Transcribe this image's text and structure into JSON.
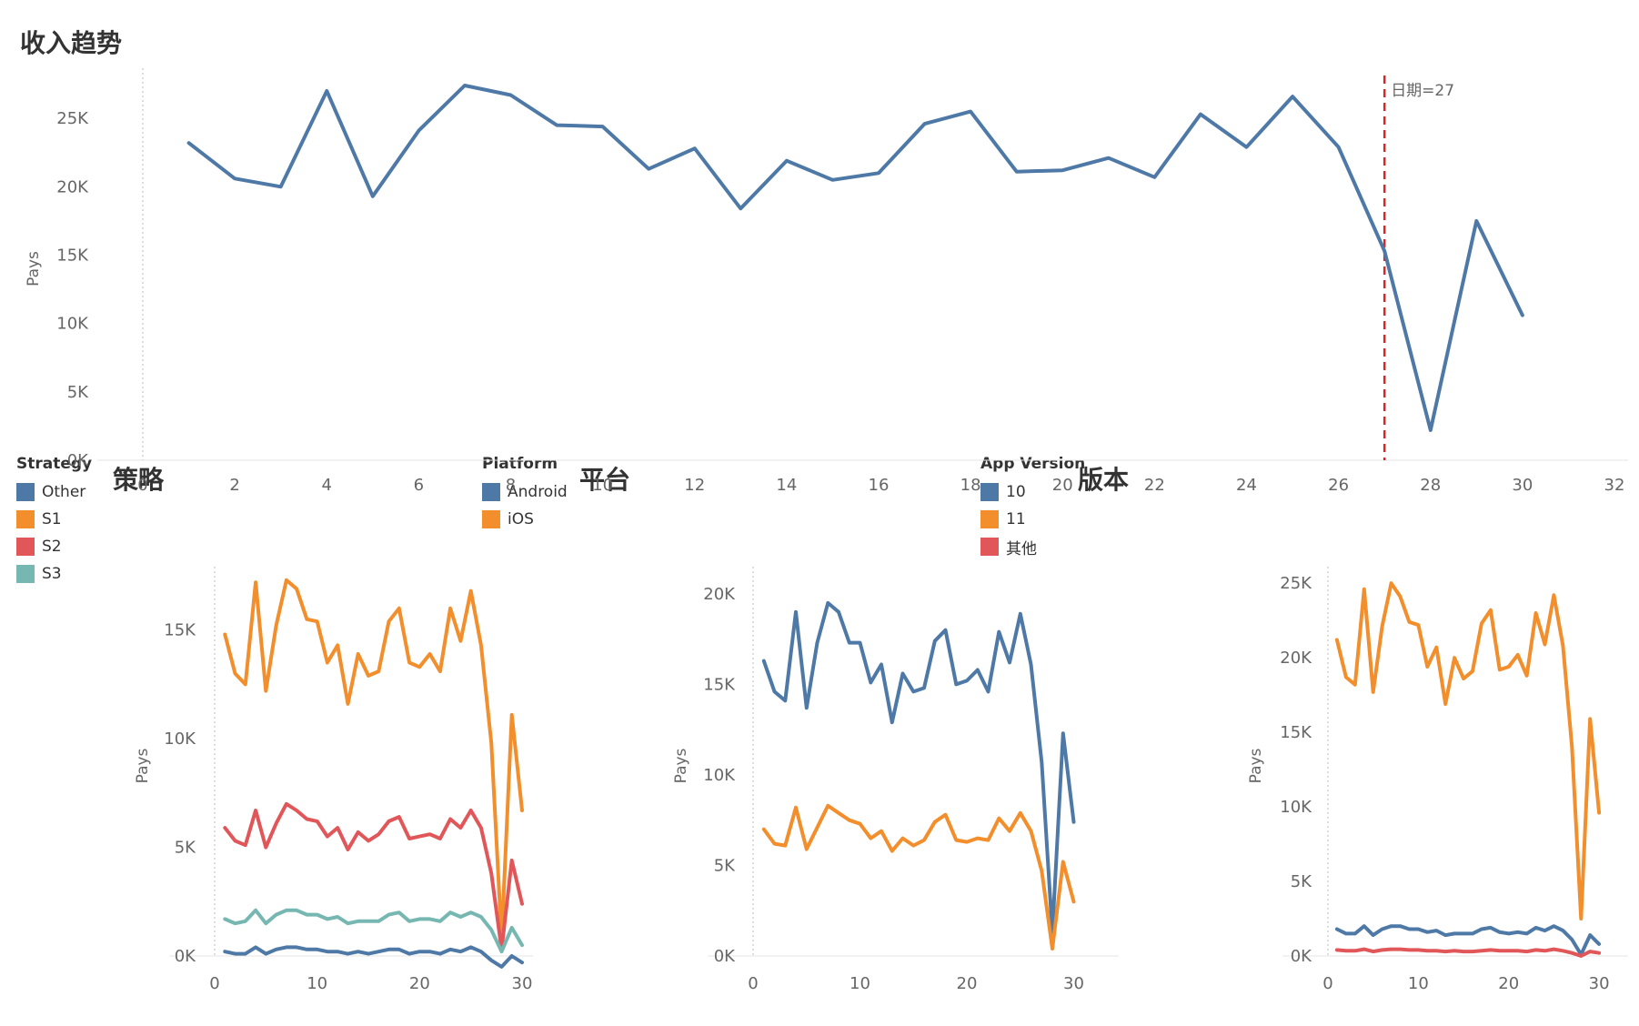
{
  "colors": {
    "blue": "#4e79a7",
    "orange": "#f28e2b",
    "red": "#e15759",
    "teal": "#76b7b2",
    "refline": "#d62728"
  },
  "titles": {
    "trend": "收入趋势",
    "strategy": "策略",
    "platform": "平台",
    "version": "版本"
  },
  "legends": {
    "strategy": {
      "title": "Strategy",
      "items": [
        {
          "label": "Other",
          "color": "#4e79a7"
        },
        {
          "label": "S1",
          "color": "#f28e2b"
        },
        {
          "label": "S2",
          "color": "#e15759"
        },
        {
          "label": "S3",
          "color": "#76b7b2"
        }
      ]
    },
    "platform": {
      "title": "Platform",
      "items": [
        {
          "label": "Android",
          "color": "#4e79a7"
        },
        {
          "label": "iOS",
          "color": "#f28e2b"
        }
      ]
    },
    "version": {
      "title": "App Version",
      "items": [
        {
          "label": "10",
          "color": "#4e79a7"
        },
        {
          "label": "11",
          "color": "#f28e2b"
        },
        {
          "label": "其他",
          "color": "#e15759"
        }
      ]
    }
  },
  "chart_data": [
    {
      "id": "trend",
      "type": "line",
      "title": "收入趋势",
      "ylabel": "Pays",
      "xlabel": "",
      "xlim": [
        0,
        32
      ],
      "ylim": [
        0,
        28000
      ],
      "xticks": [
        {
          "v": 0,
          "label": "0"
        },
        {
          "v": 2,
          "label": "2"
        },
        {
          "v": 4,
          "label": "4"
        },
        {
          "v": 6,
          "label": "6"
        },
        {
          "v": 8,
          "label": "8"
        },
        {
          "v": 10,
          "label": "10"
        },
        {
          "v": 12,
          "label": "12"
        },
        {
          "v": 14,
          "label": "14"
        },
        {
          "v": 16,
          "label": "16"
        },
        {
          "v": 18,
          "label": "18"
        },
        {
          "v": 20,
          "label": "20"
        },
        {
          "v": 22,
          "label": "22"
        },
        {
          "v": 24,
          "label": "24"
        },
        {
          "v": 26,
          "label": "26"
        },
        {
          "v": 28,
          "label": "28"
        },
        {
          "v": 30,
          "label": "30"
        },
        {
          "v": 32,
          "label": "32"
        }
      ],
      "yticks": [
        {
          "v": 0,
          "label": "0K"
        },
        {
          "v": 5000,
          "label": "5K"
        },
        {
          "v": 10000,
          "label": "10K"
        },
        {
          "v": 15000,
          "label": "15K"
        },
        {
          "v": 20000,
          "label": "20K"
        },
        {
          "v": 25000,
          "label": "25K"
        }
      ],
      "reference_line": {
        "x": 27,
        "label": "日期=27"
      },
      "x": [
        1,
        2,
        3,
        4,
        5,
        6,
        7,
        8,
        9,
        10,
        11,
        12,
        13,
        14,
        15,
        16,
        17,
        18,
        19,
        20,
        21,
        22,
        23,
        24,
        25,
        26,
        27,
        28,
        29,
        30
      ],
      "series": [
        {
          "name": "Pays",
          "color": "#4e79a7",
          "values": [
            23200,
            20600,
            20000,
            27000,
            19300,
            24100,
            27400,
            26700,
            24500,
            24400,
            21300,
            22800,
            18400,
            21900,
            20500,
            21000,
            24600,
            25500,
            21100,
            21200,
            22100,
            20700,
            25300,
            22900,
            26600,
            22900,
            15300,
            2200,
            17500,
            10600
          ]
        }
      ]
    },
    {
      "id": "strategy",
      "type": "line",
      "title": "策略",
      "ylabel": "Pays",
      "xlim": [
        0,
        30
      ],
      "ylim": [
        0,
        17500
      ],
      "xticks": [
        {
          "v": 0,
          "label": "0"
        },
        {
          "v": 10,
          "label": "10"
        },
        {
          "v": 20,
          "label": "20"
        },
        {
          "v": 30,
          "label": "30"
        }
      ],
      "yticks": [
        {
          "v": 0,
          "label": "0K"
        },
        {
          "v": 5000,
          "label": "5K"
        },
        {
          "v": 10000,
          "label": "10K"
        },
        {
          "v": 15000,
          "label": "15K"
        }
      ],
      "x": [
        1,
        2,
        3,
        4,
        5,
        6,
        7,
        8,
        9,
        10,
        11,
        12,
        13,
        14,
        15,
        16,
        17,
        18,
        19,
        20,
        21,
        22,
        23,
        24,
        25,
        26,
        27,
        28,
        29,
        30
      ],
      "series": [
        {
          "name": "S1",
          "color": "#f28e2b",
          "values": [
            14800,
            13000,
            12500,
            17200,
            12200,
            15200,
            17300,
            16900,
            15500,
            15400,
            13500,
            14300,
            11600,
            13900,
            12900,
            13100,
            15400,
            16000,
            13500,
            13300,
            13900,
            13100,
            16000,
            14500,
            16800,
            14300,
            9800,
            800,
            11100,
            6700
          ]
        },
        {
          "name": "S2",
          "color": "#e15759",
          "values": [
            5900,
            5300,
            5100,
            6700,
            5000,
            6100,
            7000,
            6700,
            6300,
            6200,
            5500,
            5900,
            4900,
            5700,
            5300,
            5600,
            6200,
            6400,
            5400,
            5500,
            5600,
            5400,
            6300,
            5900,
            6700,
            5900,
            3800,
            300,
            4400,
            2400
          ]
        },
        {
          "name": "S3",
          "color": "#76b7b2",
          "values": [
            1700,
            1500,
            1600,
            2100,
            1500,
            1900,
            2100,
            2100,
            1900,
            1900,
            1700,
            1800,
            1500,
            1600,
            1600,
            1600,
            1900,
            2000,
            1600,
            1700,
            1700,
            1600,
            2000,
            1800,
            2000,
            1800,
            1200,
            200,
            1300,
            500
          ]
        },
        {
          "name": "Other",
          "color": "#4e79a7",
          "values": [
            200,
            100,
            100,
            400,
            100,
            300,
            400,
            400,
            300,
            300,
            200,
            200,
            100,
            200,
            100,
            200,
            300,
            300,
            100,
            200,
            200,
            100,
            300,
            200,
            400,
            200,
            -200,
            -500,
            0,
            -300
          ]
        }
      ]
    },
    {
      "id": "platform",
      "type": "line",
      "title": "平台",
      "ylabel": "Pays",
      "xlim": [
        0,
        32
      ],
      "ylim": [
        0,
        21000
      ],
      "xticks": [
        {
          "v": 0,
          "label": "0"
        },
        {
          "v": 10,
          "label": "10"
        },
        {
          "v": 20,
          "label": "20"
        },
        {
          "v": 30,
          "label": "30"
        }
      ],
      "yticks": [
        {
          "v": 0,
          "label": "0K"
        },
        {
          "v": 5000,
          "label": "5K"
        },
        {
          "v": 10000,
          "label": "10K"
        },
        {
          "v": 15000,
          "label": "15K"
        },
        {
          "v": 20000,
          "label": "20K"
        }
      ],
      "x": [
        1,
        2,
        3,
        4,
        5,
        6,
        7,
        8,
        9,
        10,
        11,
        12,
        13,
        14,
        15,
        16,
        17,
        18,
        19,
        20,
        21,
        22,
        23,
        24,
        25,
        26,
        27,
        28,
        29,
        30
      ],
      "series": [
        {
          "name": "Android",
          "color": "#4e79a7",
          "values": [
            16300,
            14600,
            14100,
            19000,
            13700,
            17300,
            19500,
            19000,
            17300,
            17300,
            15100,
            16100,
            12900,
            15600,
            14600,
            14800,
            17400,
            18000,
            15000,
            15200,
            15800,
            14600,
            17900,
            16200,
            18900,
            16100,
            10700,
            1300,
            12300,
            7400
          ]
        },
        {
          "name": "iOS",
          "color": "#f28e2b",
          "values": [
            7000,
            6200,
            6100,
            8200,
            5900,
            7100,
            8300,
            7900,
            7500,
            7300,
            6500,
            6900,
            5800,
            6500,
            6100,
            6400,
            7400,
            7800,
            6400,
            6300,
            6500,
            6400,
            7600,
            6900,
            7900,
            6900,
            4700,
            400,
            5200,
            3000
          ]
        }
      ]
    },
    {
      "id": "version",
      "type": "line",
      "title": "版本",
      "ylabel": "Pays",
      "xlim": [
        0,
        32
      ],
      "ylim": [
        0,
        25500
      ],
      "xticks": [
        {
          "v": 0,
          "label": "0"
        },
        {
          "v": 10,
          "label": "10"
        },
        {
          "v": 20,
          "label": "20"
        },
        {
          "v": 30,
          "label": "30"
        }
      ],
      "yticks": [
        {
          "v": 0,
          "label": "0K"
        },
        {
          "v": 5000,
          "label": "5K"
        },
        {
          "v": 10000,
          "label": "10K"
        },
        {
          "v": 15000,
          "label": "15K"
        },
        {
          "v": 20000,
          "label": "20K"
        },
        {
          "v": 25000,
          "label": "25K"
        }
      ],
      "x": [
        1,
        2,
        3,
        4,
        5,
        6,
        7,
        8,
        9,
        10,
        11,
        12,
        13,
        14,
        15,
        16,
        17,
        18,
        19,
        20,
        21,
        22,
        23,
        24,
        25,
        26,
        27,
        28,
        29,
        30
      ],
      "series": [
        {
          "name": "11",
          "color": "#f28e2b",
          "values": [
            21200,
            18700,
            18200,
            24600,
            17700,
            22100,
            25000,
            24100,
            22400,
            22200,
            19400,
            20700,
            16900,
            20000,
            18600,
            19100,
            22300,
            23200,
            19200,
            19400,
            20200,
            18800,
            23000,
            20900,
            24200,
            20800,
            14000,
            2500,
            15900,
            9600
          ]
        },
        {
          "name": "10",
          "color": "#4e79a7",
          "values": [
            1800,
            1500,
            1500,
            2000,
            1400,
            1800,
            2000,
            2000,
            1800,
            1800,
            1600,
            1700,
            1400,
            1500,
            1500,
            1500,
            1800,
            1900,
            1600,
            1500,
            1600,
            1500,
            1900,
            1700,
            2000,
            1700,
            1100,
            100,
            1400,
            800
          ]
        },
        {
          "name": "其他",
          "color": "#e15759",
          "values": [
            400,
            350,
            350,
            450,
            300,
            400,
            450,
            450,
            400,
            400,
            350,
            350,
            300,
            350,
            300,
            300,
            350,
            400,
            350,
            350,
            350,
            300,
            400,
            350,
            450,
            350,
            200,
            0,
            300,
            200
          ]
        }
      ]
    }
  ]
}
